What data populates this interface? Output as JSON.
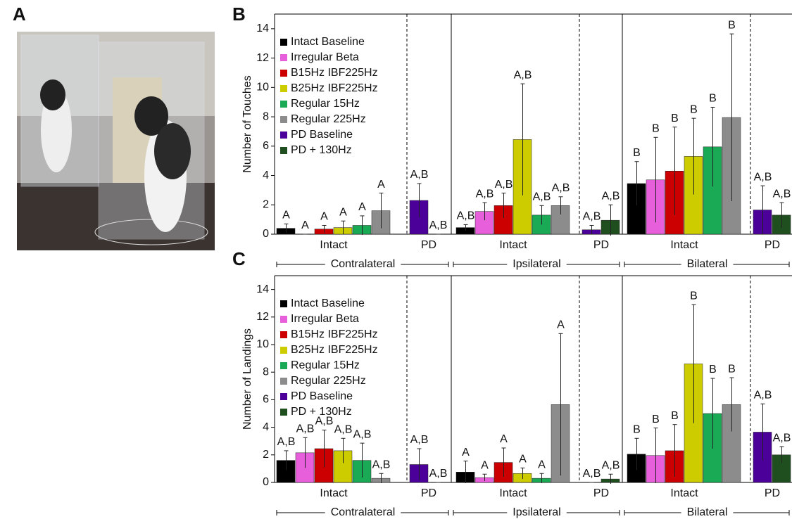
{
  "photo_panel": {
    "label": "A"
  },
  "chart_data": [
    {
      "type": "grouped-bar",
      "panel": "B",
      "y_label": "Number of Touches",
      "categories": [
        "Contralateral",
        "Ipsilateral",
        "Bilateral"
      ],
      "ylim": [
        0,
        15
      ],
      "yticks": [
        0,
        2,
        4,
        6,
        8,
        10,
        12,
        14
      ],
      "subgroups": [
        {
          "name": "Intact",
          "series": [
            {
              "name": "Intact Baseline",
              "color": "#000000",
              "values": [
                0.4,
                0.45,
                3.45
              ],
              "errors": [
                0.3,
                0.2,
                1.5
              ],
              "letters": [
                "A",
                "A,B",
                "B"
              ]
            },
            {
              "name": "Irregular Beta",
              "color": "#e85fdc",
              "values": [
                0,
                1.55,
                3.7
              ],
              "errors": [
                0,
                0.6,
                2.9
              ],
              "letters": [
                "A",
                "A,B",
                "B"
              ]
            },
            {
              "name": "B15Hz IBF225Hz",
              "color": "#cc0000",
              "values": [
                0.35,
                1.95,
                4.3
              ],
              "errors": [
                0.25,
                0.85,
                3.0
              ],
              "letters": [
                "A",
                "A,B",
                "B"
              ]
            },
            {
              "name": "B25Hz IBF225Hz",
              "color": "#cccc00",
              "values": [
                0.45,
                6.45,
                5.3
              ],
              "errors": [
                0.45,
                3.8,
                2.6
              ],
              "letters": [
                "A",
                "A,B",
                "B"
              ]
            },
            {
              "name": "Regular 15Hz",
              "color": "#1aaa55",
              "values": [
                0.6,
                1.3,
                5.95
              ],
              "errors": [
                0.65,
                0.65,
                2.7
              ],
              "letters": [
                "A",
                "A,B",
                "B"
              ]
            },
            {
              "name": "Regular 225Hz",
              "color": "#8c8c8c",
              "values": [
                1.6,
                1.95,
                7.95
              ],
              "errors": [
                1.2,
                0.6,
                5.7
              ],
              "letters": [
                "A",
                "A,B",
                "B"
              ]
            }
          ]
        },
        {
          "name": "PD",
          "series": [
            {
              "name": "PD Baseline",
              "color": "#4b0099",
              "values": [
                2.3,
                0.3,
                1.65
              ],
              "errors": [
                1.15,
                0.3,
                1.65
              ],
              "letters": [
                "A,B",
                "A,B",
                "A,B"
              ]
            },
            {
              "name": "PD + 130Hz",
              "color": "#1f4f1f",
              "values": [
                0,
                0.95,
                1.3
              ],
              "errors": [
                0,
                1.05,
                0.85
              ],
              "letters": [
                "A,B",
                "A,B",
                "A,B"
              ]
            }
          ]
        }
      ]
    },
    {
      "type": "grouped-bar",
      "panel": "C",
      "y_label": "Number of Landings",
      "categories": [
        "Contralateral",
        "Ipsilateral",
        "Bilateral"
      ],
      "ylim": [
        0,
        15
      ],
      "yticks": [
        0,
        2,
        4,
        6,
        8,
        10,
        12,
        14
      ],
      "subgroups": [
        {
          "name": "Intact",
          "series": [
            {
              "name": "Intact Baseline",
              "color": "#000000",
              "values": [
                1.6,
                0.75,
                2.05
              ],
              "errors": [
                0.7,
                0.8,
                1.15
              ],
              "letters": [
                "A,B",
                "A",
                "B"
              ]
            },
            {
              "name": "Irregular Beta",
              "color": "#e85fdc",
              "values": [
                2.15,
                0.35,
                1.95
              ],
              "errors": [
                1.1,
                0.25,
                2.0
              ],
              "letters": [
                "A,B",
                "A",
                "B"
              ]
            },
            {
              "name": "B15Hz IBF225Hz",
              "color": "#cc0000",
              "values": [
                2.45,
                1.45,
                2.3
              ],
              "errors": [
                1.35,
                1.05,
                1.9
              ],
              "letters": [
                "A,B",
                "A",
                "B"
              ]
            },
            {
              "name": "B25Hz IBF225Hz",
              "color": "#cccc00",
              "values": [
                2.3,
                0.65,
                8.6
              ],
              "errors": [
                0.9,
                0.4,
                4.3
              ],
              "letters": [
                "A,B",
                "A",
                "B"
              ]
            },
            {
              "name": "Regular 15Hz",
              "color": "#1aaa55",
              "values": [
                1.6,
                0.3,
                5.0
              ],
              "errors": [
                1.25,
                0.35,
                2.55
              ],
              "letters": [
                "A,B",
                "A",
                "B"
              ]
            },
            {
              "name": "Regular 225Hz",
              "color": "#8c8c8c",
              "values": [
                0.3,
                5.65,
                5.65
              ],
              "errors": [
                0.35,
                5.15,
                1.95
              ],
              "letters": [
                "A,B",
                "A",
                "B"
              ]
            }
          ]
        },
        {
          "name": "PD",
          "series": [
            {
              "name": "PD Baseline",
              "color": "#4b0099",
              "values": [
                1.3,
                0,
                3.65
              ],
              "errors": [
                1.15,
                0,
                2.05
              ],
              "letters": [
                "A,B",
                "A,B",
                "A,B"
              ]
            },
            {
              "name": "PD + 130Hz",
              "color": "#1f4f1f",
              "values": [
                0,
                0.25,
                2.0
              ],
              "errors": [
                0,
                0.35,
                0.6
              ],
              "letters": [
                "A,B",
                "A,B",
                "A,B"
              ]
            }
          ]
        }
      ]
    }
  ]
}
